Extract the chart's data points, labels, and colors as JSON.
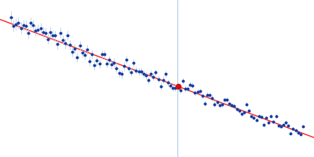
{
  "background_color": "#ffffff",
  "line_color": "#ff2222",
  "point_color": "#1a3fa0",
  "error_color": "#b8d0e8",
  "axis_line_color": "#a8c8e8",
  "highlight_point_color": "#cc1111",
  "line_slope": -0.32,
  "line_intercept": 0.58,
  "vertical_line_x": 0.565,
  "num_points": 120,
  "noise_amplitude": 0.012,
  "error_bar_size": 0.018,
  "error_bar_size_right": 0.004,
  "figsize": [
    4.0,
    2.0
  ],
  "dpi": 100
}
